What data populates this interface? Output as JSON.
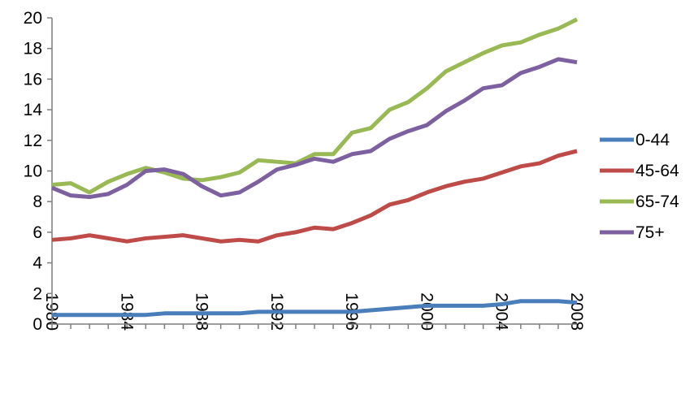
{
  "chart_data": {
    "type": "line",
    "title": "",
    "xlabel": "",
    "ylabel": "",
    "xlim": [
      1980,
      2008
    ],
    "ylim": [
      0,
      20
    ],
    "y_ticks": [
      "0",
      "2",
      "4",
      "6",
      "8",
      "10",
      "12",
      "14",
      "16",
      "18",
      "20"
    ],
    "x_ticks": [
      "1980",
      "1984",
      "1988",
      "1992",
      "1996",
      "2000",
      "2004",
      "2008"
    ],
    "grid": false,
    "legend_position": "right",
    "x": [
      1980,
      1981,
      1982,
      1983,
      1984,
      1985,
      1986,
      1987,
      1988,
      1989,
      1990,
      1991,
      1992,
      1993,
      1994,
      1995,
      1996,
      1997,
      1998,
      1999,
      2000,
      2001,
      2002,
      2003,
      2004,
      2005,
      2006,
      2007,
      2008
    ],
    "series": [
      {
        "name": "0-44",
        "color": "#4a7ebb",
        "values": [
          0.6,
          0.6,
          0.6,
          0.6,
          0.6,
          0.6,
          0.7,
          0.7,
          0.7,
          0.7,
          0.7,
          0.8,
          0.8,
          0.8,
          0.8,
          0.8,
          0.8,
          0.9,
          1.0,
          1.1,
          1.2,
          1.2,
          1.2,
          1.2,
          1.3,
          1.5,
          1.5,
          1.5,
          1.4
        ]
      },
      {
        "name": "45-64",
        "color": "#be4b48",
        "values": [
          5.5,
          5.6,
          5.8,
          5.6,
          5.4,
          5.6,
          5.7,
          5.8,
          5.6,
          5.4,
          5.5,
          5.4,
          5.8,
          6.0,
          6.3,
          6.2,
          6.6,
          7.1,
          7.8,
          8.1,
          8.6,
          9.0,
          9.3,
          9.5,
          9.9,
          10.3,
          10.5,
          11.0,
          11.3
        ]
      },
      {
        "name": "65-74",
        "color": "#98b954",
        "values": [
          9.1,
          9.2,
          8.6,
          9.3,
          9.8,
          10.2,
          9.9,
          9.5,
          9.4,
          9.6,
          9.9,
          10.7,
          10.6,
          10.5,
          11.1,
          11.1,
          12.5,
          12.8,
          14.0,
          14.5,
          15.4,
          16.5,
          17.1,
          17.7,
          18.2,
          18.4,
          18.9,
          19.3,
          19.9
        ]
      },
      {
        "name": "75+",
        "color": "#7d60a0",
        "values": [
          8.9,
          8.4,
          8.3,
          8.5,
          9.1,
          10.0,
          10.1,
          9.8,
          9.0,
          8.4,
          8.6,
          9.3,
          10.1,
          10.4,
          10.8,
          10.6,
          11.1,
          11.3,
          12.1,
          12.6,
          13.0,
          13.9,
          14.6,
          15.4,
          15.6,
          16.4,
          16.8,
          17.3,
          17.1
        ]
      }
    ]
  }
}
